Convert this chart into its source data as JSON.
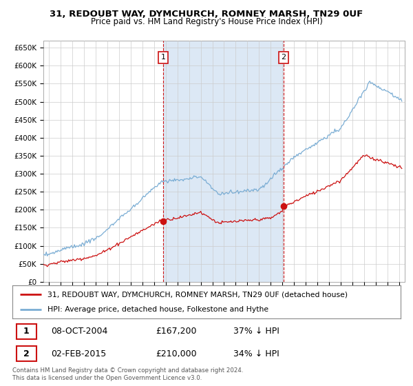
{
  "title_line1": "31, REDOUBT WAY, DYMCHURCH, ROMNEY MARSH, TN29 0UF",
  "title_line2": "Price paid vs. HM Land Registry's House Price Index (HPI)",
  "ylim": [
    0,
    670000
  ],
  "yticks": [
    0,
    50000,
    100000,
    150000,
    200000,
    250000,
    300000,
    350000,
    400000,
    450000,
    500000,
    550000,
    600000,
    650000
  ],
  "ytick_labels": [
    "£0",
    "£50K",
    "£100K",
    "£150K",
    "£200K",
    "£250K",
    "£300K",
    "£350K",
    "£400K",
    "£450K",
    "£500K",
    "£550K",
    "£600K",
    "£650K"
  ],
  "hpi_color": "#7aadd4",
  "price_color": "#cc1111",
  "shade_color": "#dce8f5",
  "sale1_date_num": 2004.77,
  "sale1_price": 167200,
  "sale1_label": "1",
  "sale2_date_num": 2015.09,
  "sale2_price": 210000,
  "sale2_label": "2",
  "legend_line1": "31, REDOUBT WAY, DYMCHURCH, ROMNEY MARSH, TN29 0UF (detached house)",
  "legend_line2": "HPI: Average price, detached house, Folkestone and Hythe",
  "note1_label": "1",
  "note1_date": "08-OCT-2004",
  "note1_price": "£167,200",
  "note1_pct": "37% ↓ HPI",
  "note2_label": "2",
  "note2_date": "02-FEB-2015",
  "note2_price": "£210,000",
  "note2_pct": "34% ↓ HPI",
  "footer": "Contains HM Land Registry data © Crown copyright and database right 2024.\nThis data is licensed under the Open Government Licence v3.0.",
  "bg_color": "#ffffff",
  "grid_color": "#cccccc",
  "plot_bg_color": "#ffffff"
}
